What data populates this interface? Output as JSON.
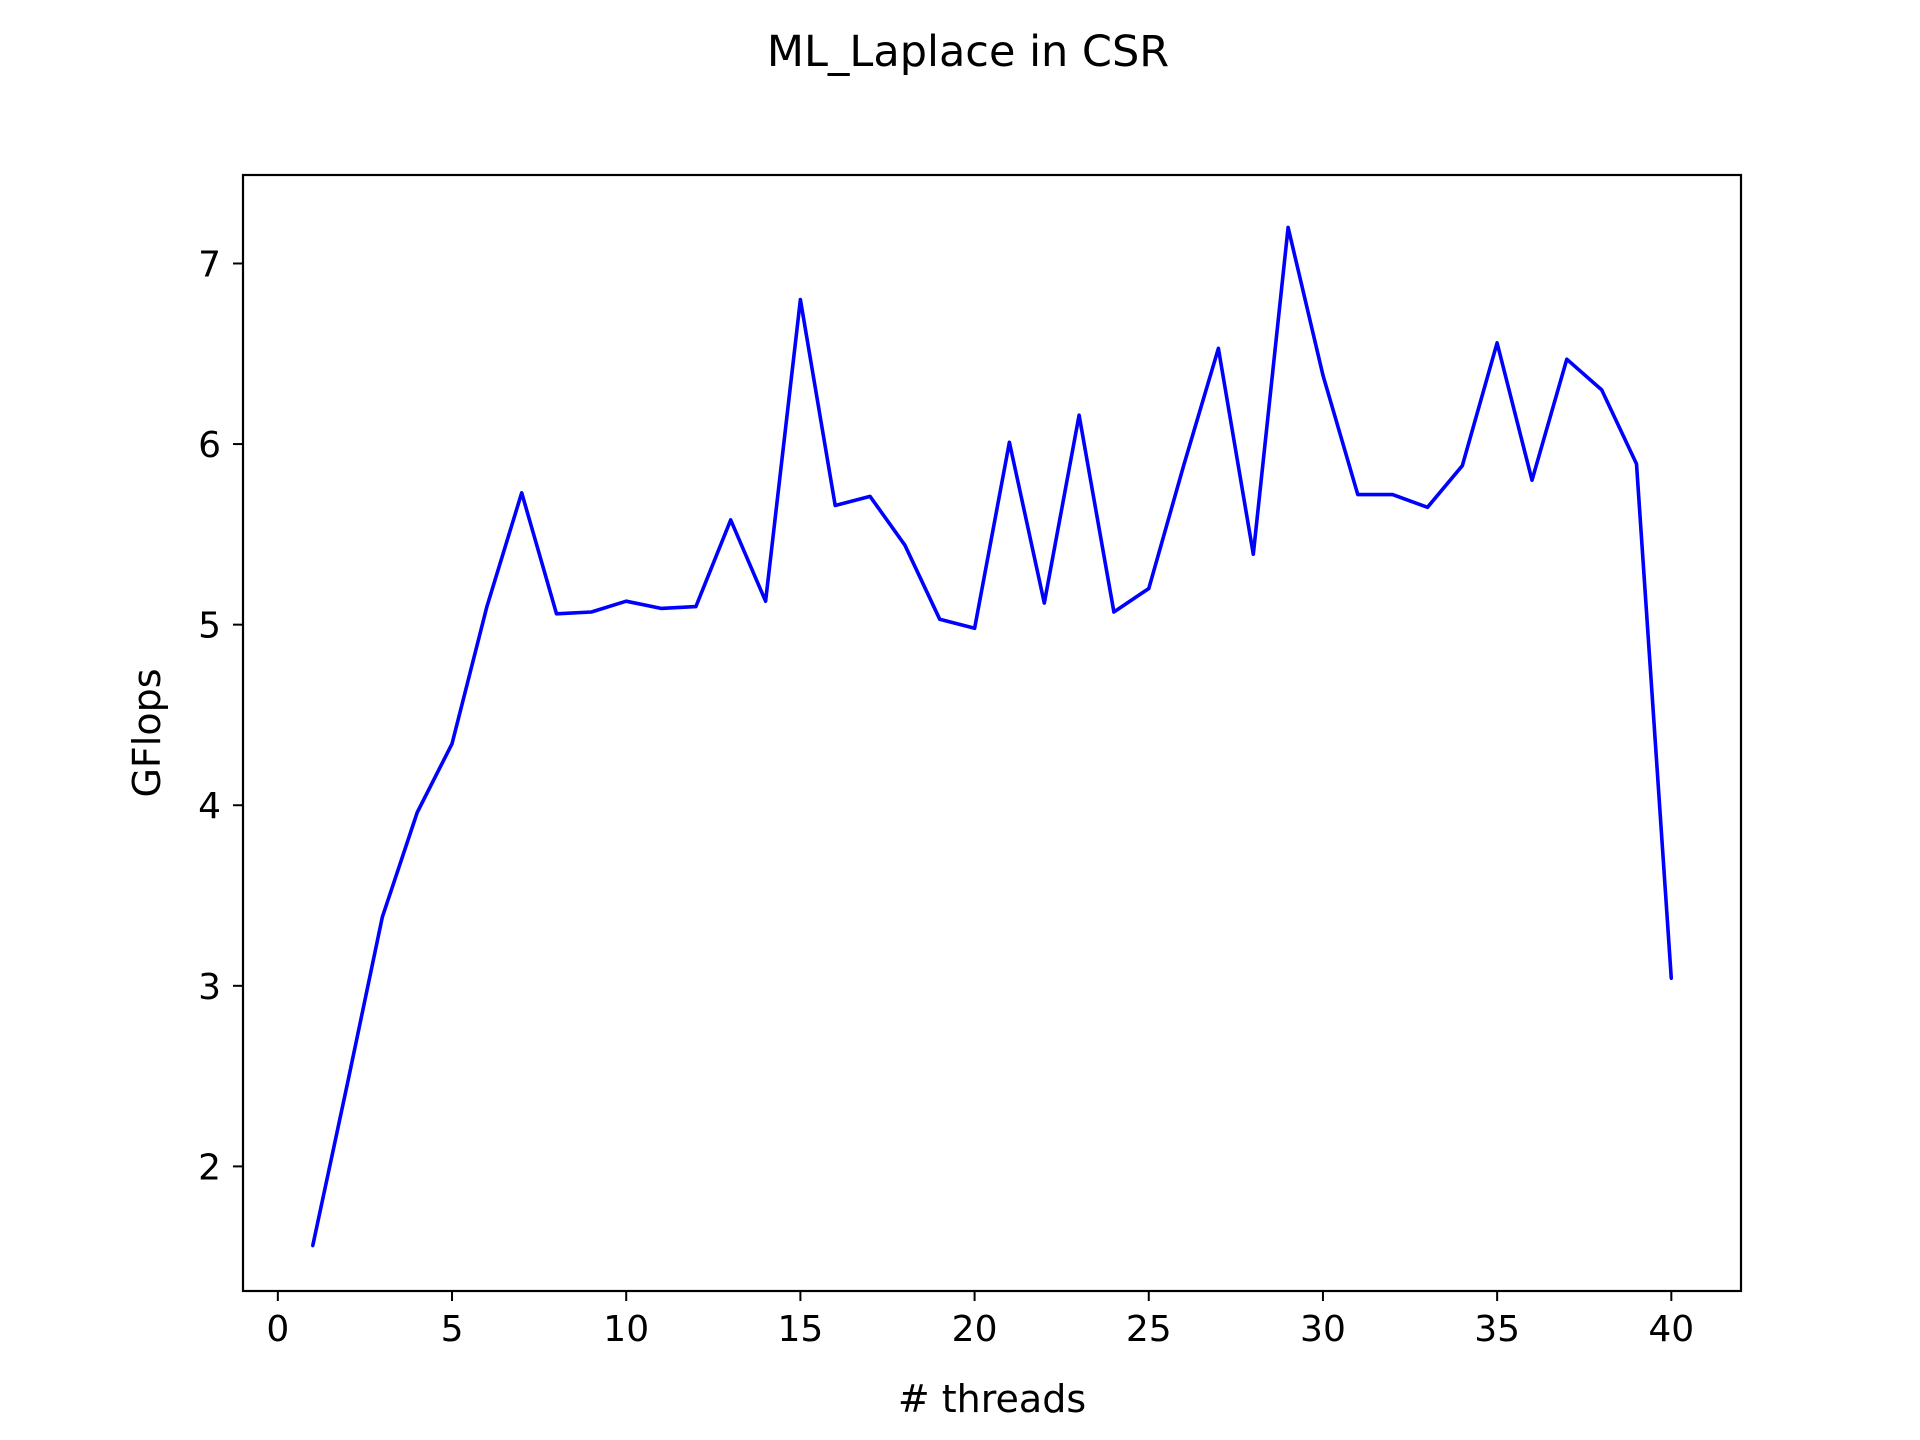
{
  "chart_data": {
    "type": "line",
    "title": "ML_Laplace in CSR",
    "xlabel": "# threads",
    "ylabel": "GFlops",
    "xlim": [
      -1,
      42
    ],
    "ylim": [
      1.31,
      7.49
    ],
    "xticks": [
      0,
      5,
      10,
      15,
      20,
      25,
      30,
      35,
      40
    ],
    "yticks": [
      2,
      3,
      4,
      5,
      6,
      7
    ],
    "xtick_labels": [
      "0",
      "5",
      "10",
      "15",
      "20",
      "25",
      "30",
      "35",
      "40"
    ],
    "ytick_labels": [
      "2",
      "3",
      "4",
      "5",
      "6",
      "7"
    ],
    "grid": false,
    "legend": "none",
    "series": [
      {
        "color": "#0000ff",
        "x": [
          1,
          2,
          3,
          4,
          5,
          6,
          7,
          8,
          9,
          10,
          11,
          12,
          13,
          14,
          15,
          16,
          17,
          18,
          19,
          20,
          21,
          22,
          23,
          24,
          25,
          26,
          27,
          28,
          29,
          30,
          31,
          32,
          33,
          34,
          35,
          36,
          37,
          38,
          39,
          40
        ],
        "y": [
          1.56,
          2.46,
          3.38,
          3.96,
          4.34,
          5.1,
          5.73,
          5.06,
          5.07,
          5.13,
          5.09,
          5.1,
          5.58,
          5.13,
          6.8,
          5.66,
          5.71,
          5.44,
          5.03,
          4.98,
          6.01,
          5.12,
          6.16,
          5.07,
          5.2,
          5.88,
          6.53,
          5.39,
          7.2,
          6.38,
          5.72,
          5.72,
          5.65,
          5.88,
          6.56,
          5.8,
          6.47,
          6.3,
          5.89,
          3.04
        ]
      }
    ]
  }
}
